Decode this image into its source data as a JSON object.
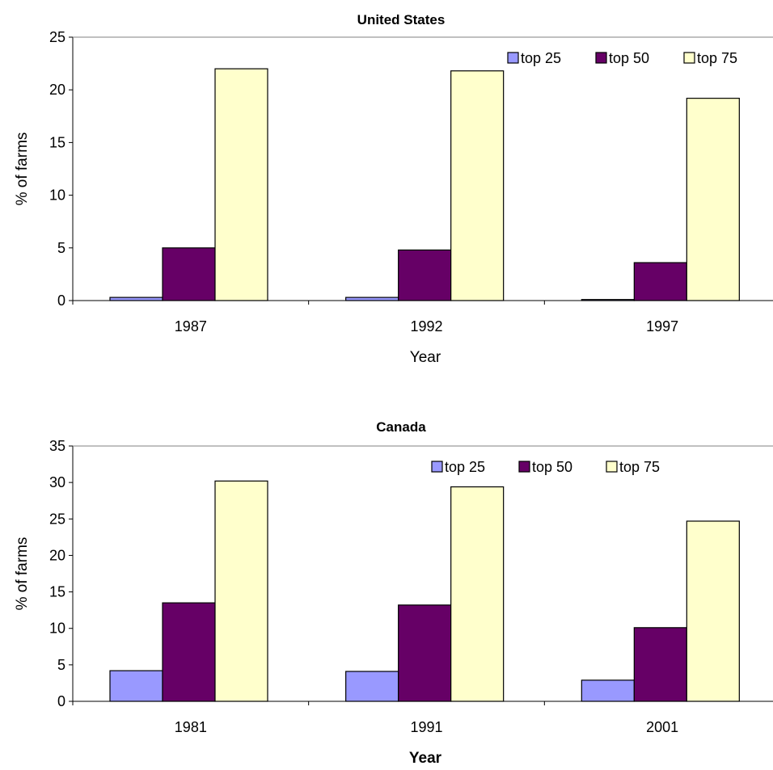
{
  "chart_data": [
    {
      "type": "bar",
      "title": "United States",
      "xlabel": "Year",
      "ylabel": "% of farms",
      "categories": [
        "1987",
        "1992",
        "1997"
      ],
      "series": [
        {
          "name": "top 25",
          "values": [
            0.3,
            0.3,
            0.1
          ]
        },
        {
          "name": "top 50",
          "values": [
            5.0,
            4.8,
            3.6
          ]
        },
        {
          "name": "top 75",
          "values": [
            22.0,
            21.8,
            19.2
          ]
        }
      ],
      "ylim": [
        0,
        25
      ],
      "yticks": [
        "0",
        "5",
        "10",
        "15",
        "20",
        "25"
      ],
      "legend": "top-right",
      "grid": false
    },
    {
      "type": "bar",
      "title": "Canada",
      "xlabel": "Year",
      "ylabel": "% of farms",
      "categories": [
        "1981",
        "1991",
        "2001"
      ],
      "series": [
        {
          "name": "top 25",
          "values": [
            4.2,
            4.1,
            2.9
          ]
        },
        {
          "name": "top 50",
          "values": [
            13.5,
            13.2,
            10.1
          ]
        },
        {
          "name": "top 75",
          "values": [
            30.2,
            29.4,
            24.7
          ]
        }
      ],
      "ylim": [
        0,
        35
      ],
      "yticks": [
        "0",
        "5",
        "10",
        "15",
        "20",
        "25",
        "30",
        "35"
      ],
      "legend": "top-right",
      "grid": false
    }
  ],
  "colors": {
    "top 25": "#9999ff",
    "top 50": "#660066",
    "top 75": "#ffffcc",
    "stroke": "#000000"
  }
}
